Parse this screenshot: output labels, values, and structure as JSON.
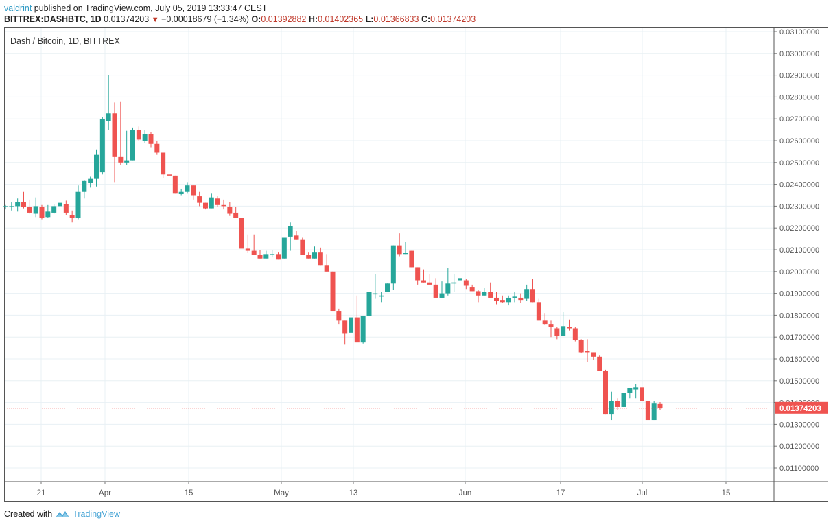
{
  "header": {
    "author": "valdrint",
    "published_text": "published on TradingView.com, July 05, 2019 13:33:47 CEST",
    "symbol": "BITTREX:DASHBTC, 1D",
    "last": "0.01374203",
    "change": "−0.00018679 (−1.34%)",
    "o_label": "O:",
    "o": "0.01392882",
    "h_label": "H:",
    "h": "0.01402365",
    "l_label": "L:",
    "l": "0.01366833",
    "c_label": "C:",
    "c": "0.01374203"
  },
  "plot_title": "Dash / Bitcoin, 1D, BITTREX",
  "footer": {
    "created_with": "Created with",
    "brand": "TradingView"
  },
  "colors": {
    "up": "#26a69a",
    "down": "#ef5350",
    "grid": "#e8f0f4",
    "axis_text": "#555",
    "last_price": "#ef5350"
  },
  "chart_data": {
    "type": "candlestick",
    "title": "Dash / Bitcoin, 1D, BITTREX",
    "ylim": [
      0.0105,
      0.0311
    ],
    "y_ticks": [
      "0.03100000",
      "0.03000000",
      "0.02900000",
      "0.02800000",
      "0.02700000",
      "0.02600000",
      "0.02500000",
      "0.02400000",
      "0.02300000",
      "0.02200000",
      "0.02100000",
      "0.02000000",
      "0.01900000",
      "0.01800000",
      "0.01700000",
      "0.01600000",
      "0.01500000",
      "0.01400000",
      "0.01300000",
      "0.01200000",
      "0.01100000"
    ],
    "x_ticks": [
      {
        "label": "21",
        "x": 60
      },
      {
        "label": "Apr",
        "x": 153
      },
      {
        "label": "15",
        "x": 275
      },
      {
        "label": "May",
        "x": 410
      },
      {
        "label": "13",
        "x": 515
      },
      {
        "label": "Jun",
        "x": 678
      },
      {
        "label": "17",
        "x": 817
      },
      {
        "label": "Jul",
        "x": 936
      },
      {
        "label": "15",
        "x": 1058
      }
    ],
    "last_price": "0.01374203",
    "candles": [
      [
        0.02295,
        0.02305,
        0.02285,
        0.023
      ],
      [
        0.023,
        0.0232,
        0.0228,
        0.023
      ],
      [
        0.023,
        0.02335,
        0.02275,
        0.0232
      ],
      [
        0.0232,
        0.02365,
        0.0229,
        0.02295
      ],
      [
        0.02295,
        0.0233,
        0.02265,
        0.0227
      ],
      [
        0.02265,
        0.0234,
        0.0225,
        0.023
      ],
      [
        0.02295,
        0.02305,
        0.0224,
        0.02245
      ],
      [
        0.0225,
        0.02305,
        0.02245,
        0.02275
      ],
      [
        0.0227,
        0.0231,
        0.02265,
        0.023
      ],
      [
        0.023,
        0.02335,
        0.0228,
        0.02315
      ],
      [
        0.0231,
        0.02325,
        0.0226,
        0.0227
      ],
      [
        0.0226,
        0.0228,
        0.02225,
        0.02245
      ],
      [
        0.02245,
        0.02395,
        0.0224,
        0.02365
      ],
      [
        0.02365,
        0.0242,
        0.02335,
        0.02415
      ],
      [
        0.02405,
        0.02435,
        0.02385,
        0.02425
      ],
      [
        0.02425,
        0.0256,
        0.0239,
        0.02535
      ],
      [
        0.02455,
        0.0271,
        0.02445,
        0.027
      ],
      [
        0.0269,
        0.029,
        0.0265,
        0.02725
      ],
      [
        0.02725,
        0.02775,
        0.0241,
        0.02525
      ],
      [
        0.02525,
        0.0278,
        0.0249,
        0.025
      ],
      [
        0.025,
        0.02645,
        0.0249,
        0.0251
      ],
      [
        0.0251,
        0.0266,
        0.0251,
        0.0265
      ],
      [
        0.0265,
        0.02665,
        0.026,
        0.02605
      ],
      [
        0.026,
        0.0265,
        0.0259,
        0.0263
      ],
      [
        0.0263,
        0.0264,
        0.0257,
        0.02585
      ],
      [
        0.02585,
        0.026,
        0.02535,
        0.02545
      ],
      [
        0.02545,
        0.025,
        0.0243,
        0.02445
      ],
      [
        0.02445,
        0.02445,
        0.0229,
        0.0244
      ],
      [
        0.0244,
        0.0242,
        0.0236,
        0.0236
      ],
      [
        0.02355,
        0.0238,
        0.0235,
        0.02365
      ],
      [
        0.02365,
        0.0241,
        0.0236,
        0.02395
      ],
      [
        0.02395,
        0.02395,
        0.0233,
        0.0235
      ],
      [
        0.02345,
        0.02365,
        0.023,
        0.02315
      ],
      [
        0.02315,
        0.02305,
        0.02285,
        0.0229
      ],
      [
        0.0229,
        0.0236,
        0.0229,
        0.0234
      ],
      [
        0.02335,
        0.02345,
        0.02295,
        0.02305
      ],
      [
        0.02305,
        0.0233,
        0.02285,
        0.023
      ],
      [
        0.02295,
        0.0232,
        0.02255,
        0.02265
      ],
      [
        0.0227,
        0.02295,
        0.02245,
        0.02245
      ],
      [
        0.02245,
        0.02245,
        0.021,
        0.02105
      ],
      [
        0.02105,
        0.0217,
        0.02085,
        0.02095
      ],
      [
        0.02095,
        0.0217,
        0.0208,
        0.02075
      ],
      [
        0.02075,
        0.021,
        0.0206,
        0.0206
      ],
      [
        0.0206,
        0.02095,
        0.0206,
        0.0208
      ],
      [
        0.0208,
        0.021,
        0.02065,
        0.0208
      ],
      [
        0.0208,
        0.0209,
        0.02055,
        0.02055
      ],
      [
        0.0206,
        0.02145,
        0.0206,
        0.02155
      ],
      [
        0.0216,
        0.02225,
        0.02095,
        0.0221
      ],
      [
        0.02165,
        0.02185,
        0.0215,
        0.02145
      ],
      [
        0.02145,
        0.02155,
        0.0208,
        0.02075
      ],
      [
        0.02075,
        0.0209,
        0.0206,
        0.0206
      ],
      [
        0.0206,
        0.02115,
        0.0206,
        0.0209
      ],
      [
        0.0209,
        0.0211,
        0.0205,
        0.0203
      ],
      [
        0.0203,
        0.0208,
        0.0202,
        0.02
      ],
      [
        0.02,
        0.0199,
        0.0182,
        0.0182
      ],
      [
        0.0182,
        0.0183,
        0.0176,
        0.01775
      ],
      [
        0.01775,
        0.01775,
        0.01665,
        0.01715
      ],
      [
        0.0172,
        0.018,
        0.0169,
        0.0179
      ],
      [
        0.0179,
        0.0189,
        0.0168,
        0.01675
      ],
      [
        0.01675,
        0.0179,
        0.0167,
        0.01795
      ],
      [
        0.01795,
        0.01905,
        0.01795,
        0.01905
      ],
      [
        0.019,
        0.0199,
        0.01875,
        0.019
      ],
      [
        0.01885,
        0.01905,
        0.0186,
        0.0189
      ],
      [
        0.01905,
        0.01945,
        0.01905,
        0.01945
      ],
      [
        0.01945,
        0.0209,
        0.01915,
        0.0212
      ],
      [
        0.0212,
        0.02175,
        0.0207,
        0.0208
      ],
      [
        0.02085,
        0.02135,
        0.0208,
        0.02085
      ],
      [
        0.02095,
        0.0209,
        0.02045,
        0.0202
      ],
      [
        0.0202,
        0.01985,
        0.0194,
        0.0196
      ],
      [
        0.0196,
        0.0201,
        0.0197,
        0.0195
      ],
      [
        0.0195,
        0.0199,
        0.0195,
        0.0194
      ],
      [
        0.0194,
        0.0197,
        0.0192,
        0.0188
      ],
      [
        0.0188,
        0.01955,
        0.0188,
        0.019
      ],
      [
        0.019,
        0.02015,
        0.0189,
        0.01945
      ],
      [
        0.01945,
        0.0199,
        0.01905,
        0.0195
      ],
      [
        0.0196,
        0.0199,
        0.01935,
        0.0197
      ],
      [
        0.0196,
        0.01965,
        0.0192,
        0.01935
      ],
      [
        0.0193,
        0.0194,
        0.0191,
        0.0191
      ],
      [
        0.0191,
        0.01915,
        0.0186,
        0.0189
      ],
      [
        0.0189,
        0.01925,
        0.0189,
        0.01905
      ],
      [
        0.01905,
        0.0195,
        0.019,
        0.0188
      ],
      [
        0.0188,
        0.01905,
        0.0185,
        0.01865
      ],
      [
        0.0187,
        0.0189,
        0.01855,
        0.0186
      ],
      [
        0.0186,
        0.0189,
        0.01845,
        0.0188
      ],
      [
        0.0188,
        0.01905,
        0.0186,
        0.01885
      ],
      [
        0.0188,
        0.019,
        0.01855,
        0.0187
      ],
      [
        0.01875,
        0.0194,
        0.01865,
        0.0192
      ],
      [
        0.0192,
        0.01965,
        0.0187,
        0.0186
      ],
      [
        0.0186,
        0.01875,
        0.0178,
        0.01775
      ],
      [
        0.01775,
        0.0181,
        0.01755,
        0.0176
      ],
      [
        0.0176,
        0.01775,
        0.017,
        0.01745
      ],
      [
        0.0174,
        0.01745,
        0.0169,
        0.01705
      ],
      [
        0.01705,
        0.01815,
        0.01705,
        0.0175
      ],
      [
        0.01745,
        0.0178,
        0.0173,
        0.0174
      ],
      [
        0.0174,
        0.01745,
        0.0168,
        0.01685
      ],
      [
        0.01685,
        0.0169,
        0.01625,
        0.0163
      ],
      [
        0.01635,
        0.0169,
        0.01585,
        0.0163
      ],
      [
        0.0163,
        0.0163,
        0.01595,
        0.0161
      ],
      [
        0.0161,
        0.01615,
        0.016,
        0.01545
      ],
      [
        0.01545,
        0.0155,
        0.01345,
        0.01345
      ],
      [
        0.01345,
        0.0145,
        0.0132,
        0.01405
      ],
      [
        0.01405,
        0.0142,
        0.01365,
        0.0138
      ],
      [
        0.0138,
        0.01445,
        0.0138,
        0.01445
      ],
      [
        0.01445,
        0.0146,
        0.0142,
        0.01465
      ],
      [
        0.0146,
        0.01485,
        0.0142,
        0.0147
      ],
      [
        0.0147,
        0.01515,
        0.01395,
        0.01405
      ],
      [
        0.01405,
        0.01405,
        0.0132,
        0.0132
      ],
      [
        0.0132,
        0.01405,
        0.0132,
        0.01395
      ],
      [
        0.01393,
        0.01402,
        0.01367,
        0.01374
      ]
    ],
    "x0": 8,
    "x_step": 9.3
  }
}
